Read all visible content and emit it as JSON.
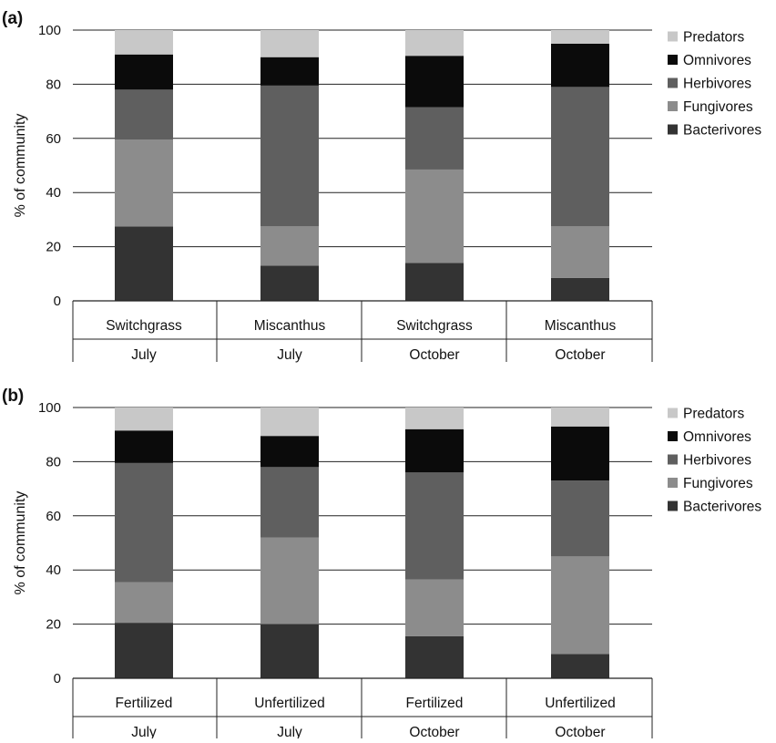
{
  "chart_data": [
    {
      "panel_label": "(a)",
      "type": "bar",
      "stacked": true,
      "ylabel": "% of community",
      "ylim": [
        0,
        100
      ],
      "yticks": [
        0,
        20,
        40,
        60,
        80,
        100
      ],
      "grid": true,
      "legend_position": "right",
      "categories": [
        [
          "Switchgrass",
          "July"
        ],
        [
          "Miscanthus",
          "July"
        ],
        [
          "Switchgrass",
          "October"
        ],
        [
          "Miscanthus",
          "October"
        ]
      ],
      "series": [
        {
          "name": "Bacterivores",
          "color": "#333333",
          "values": [
            27.5,
            13,
            14,
            8.5
          ]
        },
        {
          "name": "Fungivores",
          "color": "#8c8c8c",
          "values": [
            32,
            14.5,
            34.5,
            19
          ]
        },
        {
          "name": "Herbivores",
          "color": "#5f5f5f",
          "values": [
            18.5,
            52,
            23,
            51.5
          ]
        },
        {
          "name": "Omnivores",
          "color": "#0b0b0b",
          "values": [
            13,
            10.5,
            19,
            16
          ]
        },
        {
          "name": "Predators",
          "color": "#c8c8c8",
          "values": [
            9,
            10,
            9.5,
            5
          ]
        }
      ]
    },
    {
      "panel_label": "(b)",
      "type": "bar",
      "stacked": true,
      "ylabel": "% of community",
      "ylim": [
        0,
        100
      ],
      "yticks": [
        0,
        20,
        40,
        60,
        80,
        100
      ],
      "grid": true,
      "legend_position": "right",
      "categories": [
        [
          "Fertilized",
          "July"
        ],
        [
          "Unfertilized",
          "July"
        ],
        [
          "Fertilized",
          "October"
        ],
        [
          "Unfertilized",
          "October"
        ]
      ],
      "series": [
        {
          "name": "Bacterivores",
          "color": "#333333",
          "values": [
            20.5,
            20,
            15.5,
            9
          ]
        },
        {
          "name": "Fungivores",
          "color": "#8c8c8c",
          "values": [
            15,
            32,
            21,
            36
          ]
        },
        {
          "name": "Herbivores",
          "color": "#5f5f5f",
          "values": [
            44,
            26,
            39.5,
            28
          ]
        },
        {
          "name": "Omnivores",
          "color": "#0b0b0b",
          "values": [
            12,
            11.5,
            16,
            20
          ]
        },
        {
          "name": "Predators",
          "color": "#c8c8c8",
          "values": [
            8.5,
            10.5,
            8,
            7
          ]
        }
      ]
    }
  ]
}
